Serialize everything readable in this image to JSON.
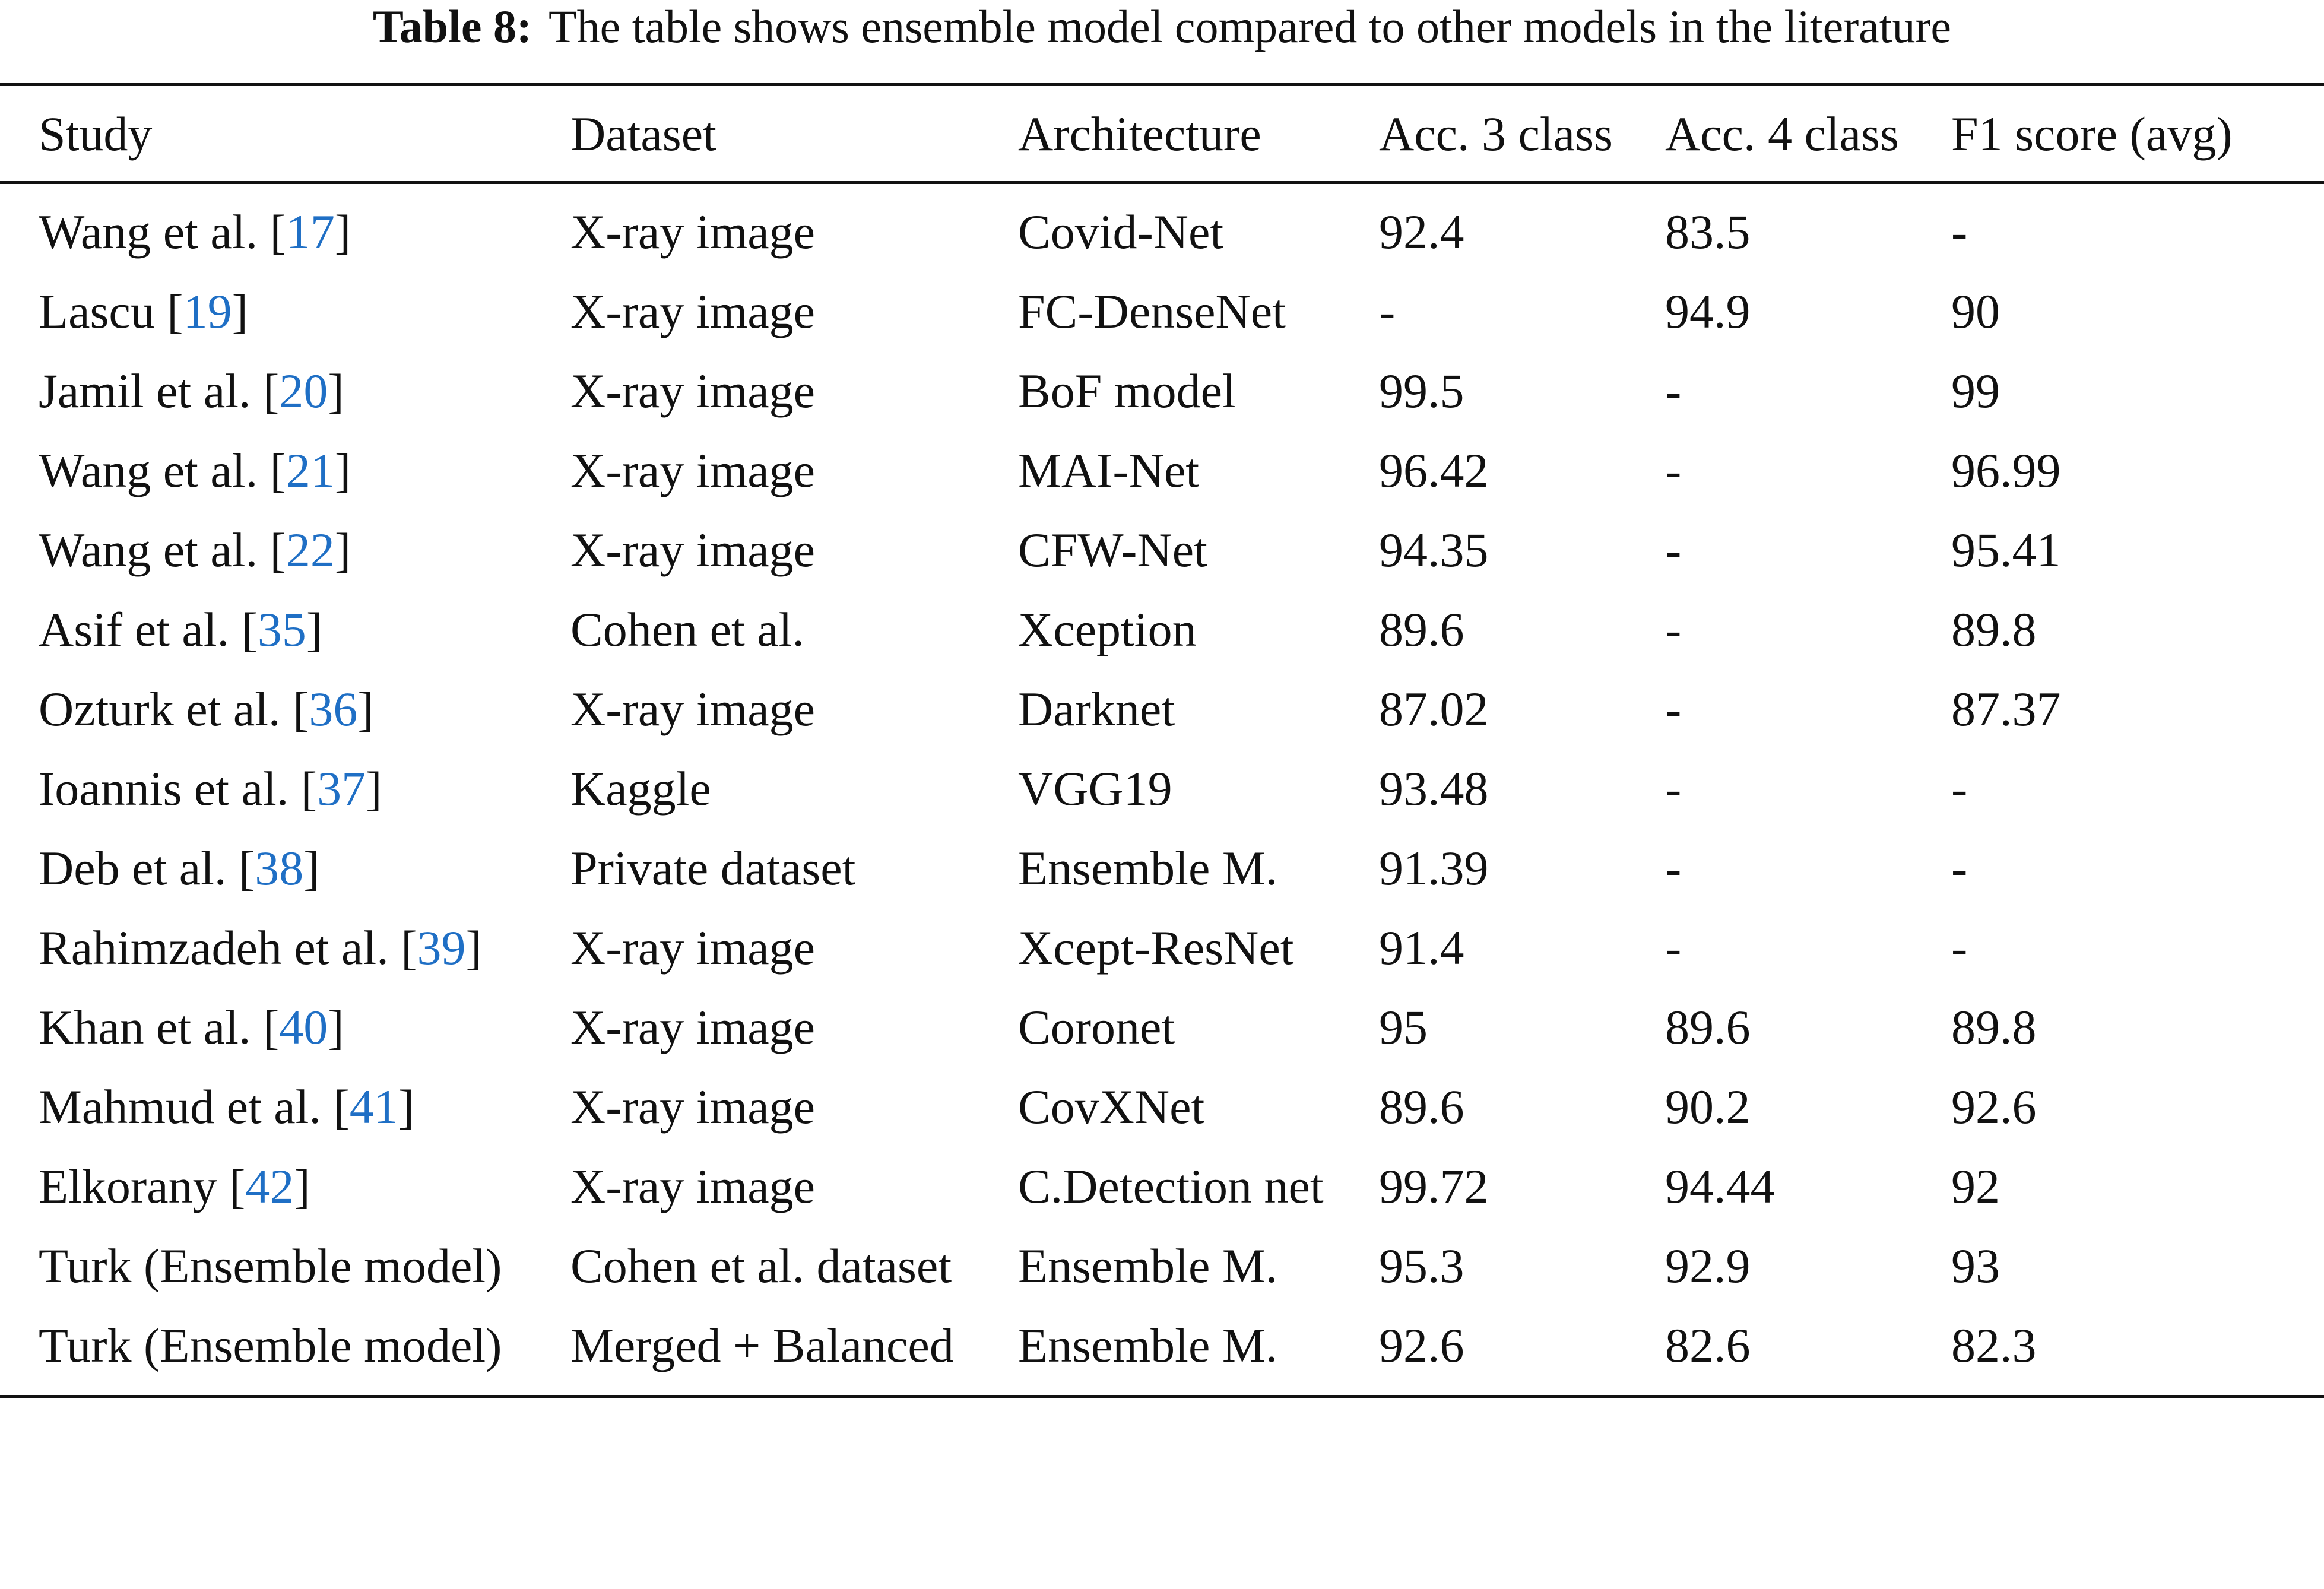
{
  "caption": {
    "label": "Table 8:",
    "text": "The table shows ensemble model compared to other models in the literature"
  },
  "table": {
    "headers": [
      "Study",
      "Dataset",
      "Architecture",
      "Acc. 3 class",
      "Acc. 4 class",
      "F1 score (avg)"
    ],
    "rows": [
      {
        "study": "Wang et al.",
        "ref": "17",
        "dataset": "X-ray image",
        "architecture": "Covid-Net",
        "acc3": "92.4",
        "acc4": "83.5",
        "f1": "-"
      },
      {
        "study": "Lascu",
        "ref": "19",
        "dataset": "X-ray image",
        "architecture": "FC-DenseNet",
        "acc3": "-",
        "acc4": "94.9",
        "f1": "90"
      },
      {
        "study": "Jamil et al.",
        "ref": "20",
        "dataset": "X-ray image",
        "architecture": "BoF model",
        "acc3": "99.5",
        "acc4": "-",
        "f1": "99"
      },
      {
        "study": "Wang et al.",
        "ref": "21",
        "dataset": "X-ray image",
        "architecture": "MAI-Net",
        "acc3": "96.42",
        "acc4": "-",
        "f1": "96.99"
      },
      {
        "study": "Wang et al.",
        "ref": "22",
        "dataset": "X-ray image",
        "architecture": "CFW-Net",
        "acc3": "94.35",
        "acc4": "-",
        "f1": "95.41"
      },
      {
        "study": "Asif et al.",
        "ref": "35",
        "dataset": "Cohen et al.",
        "architecture": "Xception",
        "acc3": "89.6",
        "acc4": "-",
        "f1": "89.8"
      },
      {
        "study": "Ozturk et al.",
        "ref": "36",
        "dataset": "X-ray image",
        "architecture": "Darknet",
        "acc3": "87.02",
        "acc4": "-",
        "f1": "87.37"
      },
      {
        "study": "Ioannis et al.",
        "ref": "37",
        "dataset": "Kaggle",
        "architecture": "VGG19",
        "acc3": "93.48",
        "acc4": "-",
        "f1": "-"
      },
      {
        "study": "Deb et al.",
        "ref": "38",
        "dataset": "Private dataset",
        "architecture": "Ensemble M.",
        "acc3": "91.39",
        "acc4": "-",
        "f1": "-"
      },
      {
        "study": "Rahimzadeh et al.",
        "ref": "39",
        "dataset": "X-ray image",
        "architecture": "Xcept-ResNet",
        "acc3": "91.4",
        "acc4": "-",
        "f1": "-"
      },
      {
        "study": "Khan et al.",
        "ref": "40",
        "dataset": "X-ray image",
        "architecture": "Coronet",
        "acc3": "95",
        "acc4": "89.6",
        "f1": "89.8"
      },
      {
        "study": "Mahmud et al.",
        "ref": "41",
        "dataset": "X-ray image",
        "architecture": "CovXNet",
        "acc3": "89.6",
        "acc4": "90.2",
        "f1": "92.6"
      },
      {
        "study": "Elkorany",
        "ref": "42",
        "dataset": "X-ray image",
        "architecture": "C.Detection net",
        "acc3": "99.72",
        "acc4": "94.44",
        "f1": "92"
      },
      {
        "study": "Turk (Ensemble model)",
        "ref": "",
        "dataset": "Cohen et al. dataset",
        "architecture": "Ensemble M.",
        "acc3": "95.3",
        "acc4": "92.9",
        "f1": "93"
      },
      {
        "study": "Turk (Ensemble model)",
        "ref": "",
        "dataset": "Merged + Balanced",
        "architecture": "Ensemble M.",
        "acc3": "92.6",
        "acc4": "82.6",
        "f1": "82.3"
      }
    ]
  }
}
